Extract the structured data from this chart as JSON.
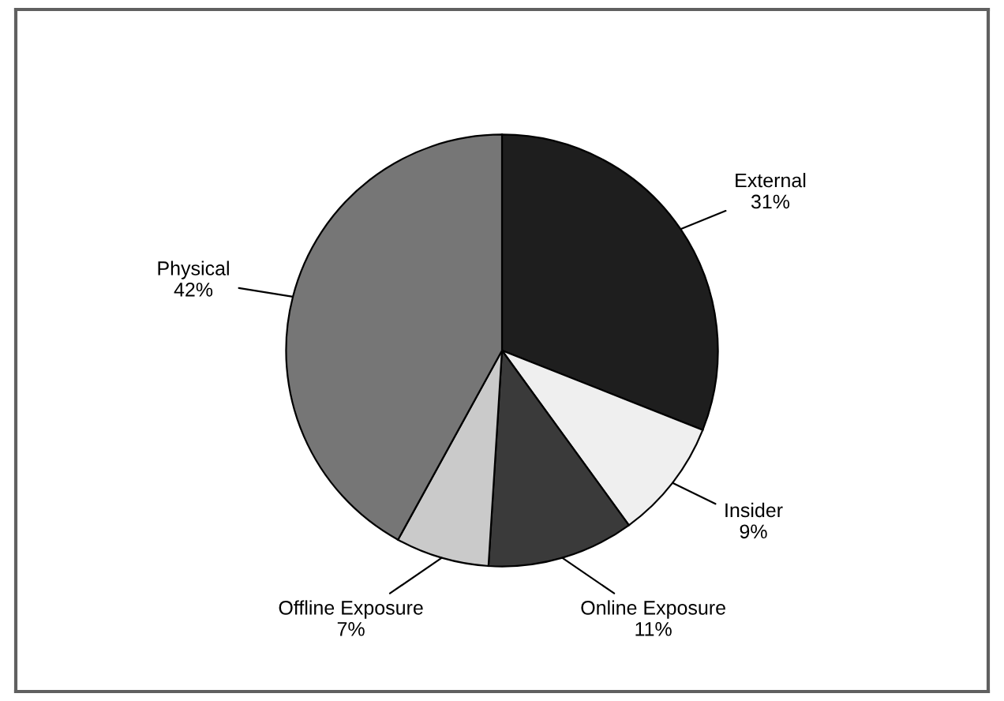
{
  "chart_data": {
    "type": "pie",
    "categories": [
      "External",
      "Insider",
      "Online Exposure",
      "Offline Exposure",
      "Physical"
    ],
    "values": [
      31,
      9,
      11,
      7,
      42
    ],
    "value_labels": [
      "31%",
      "9%",
      "11%",
      "7%",
      "42%"
    ],
    "colors": [
      "#1e1e1e",
      "#efefef",
      "#3a3a3a",
      "#cacaca",
      "#767676"
    ]
  }
}
